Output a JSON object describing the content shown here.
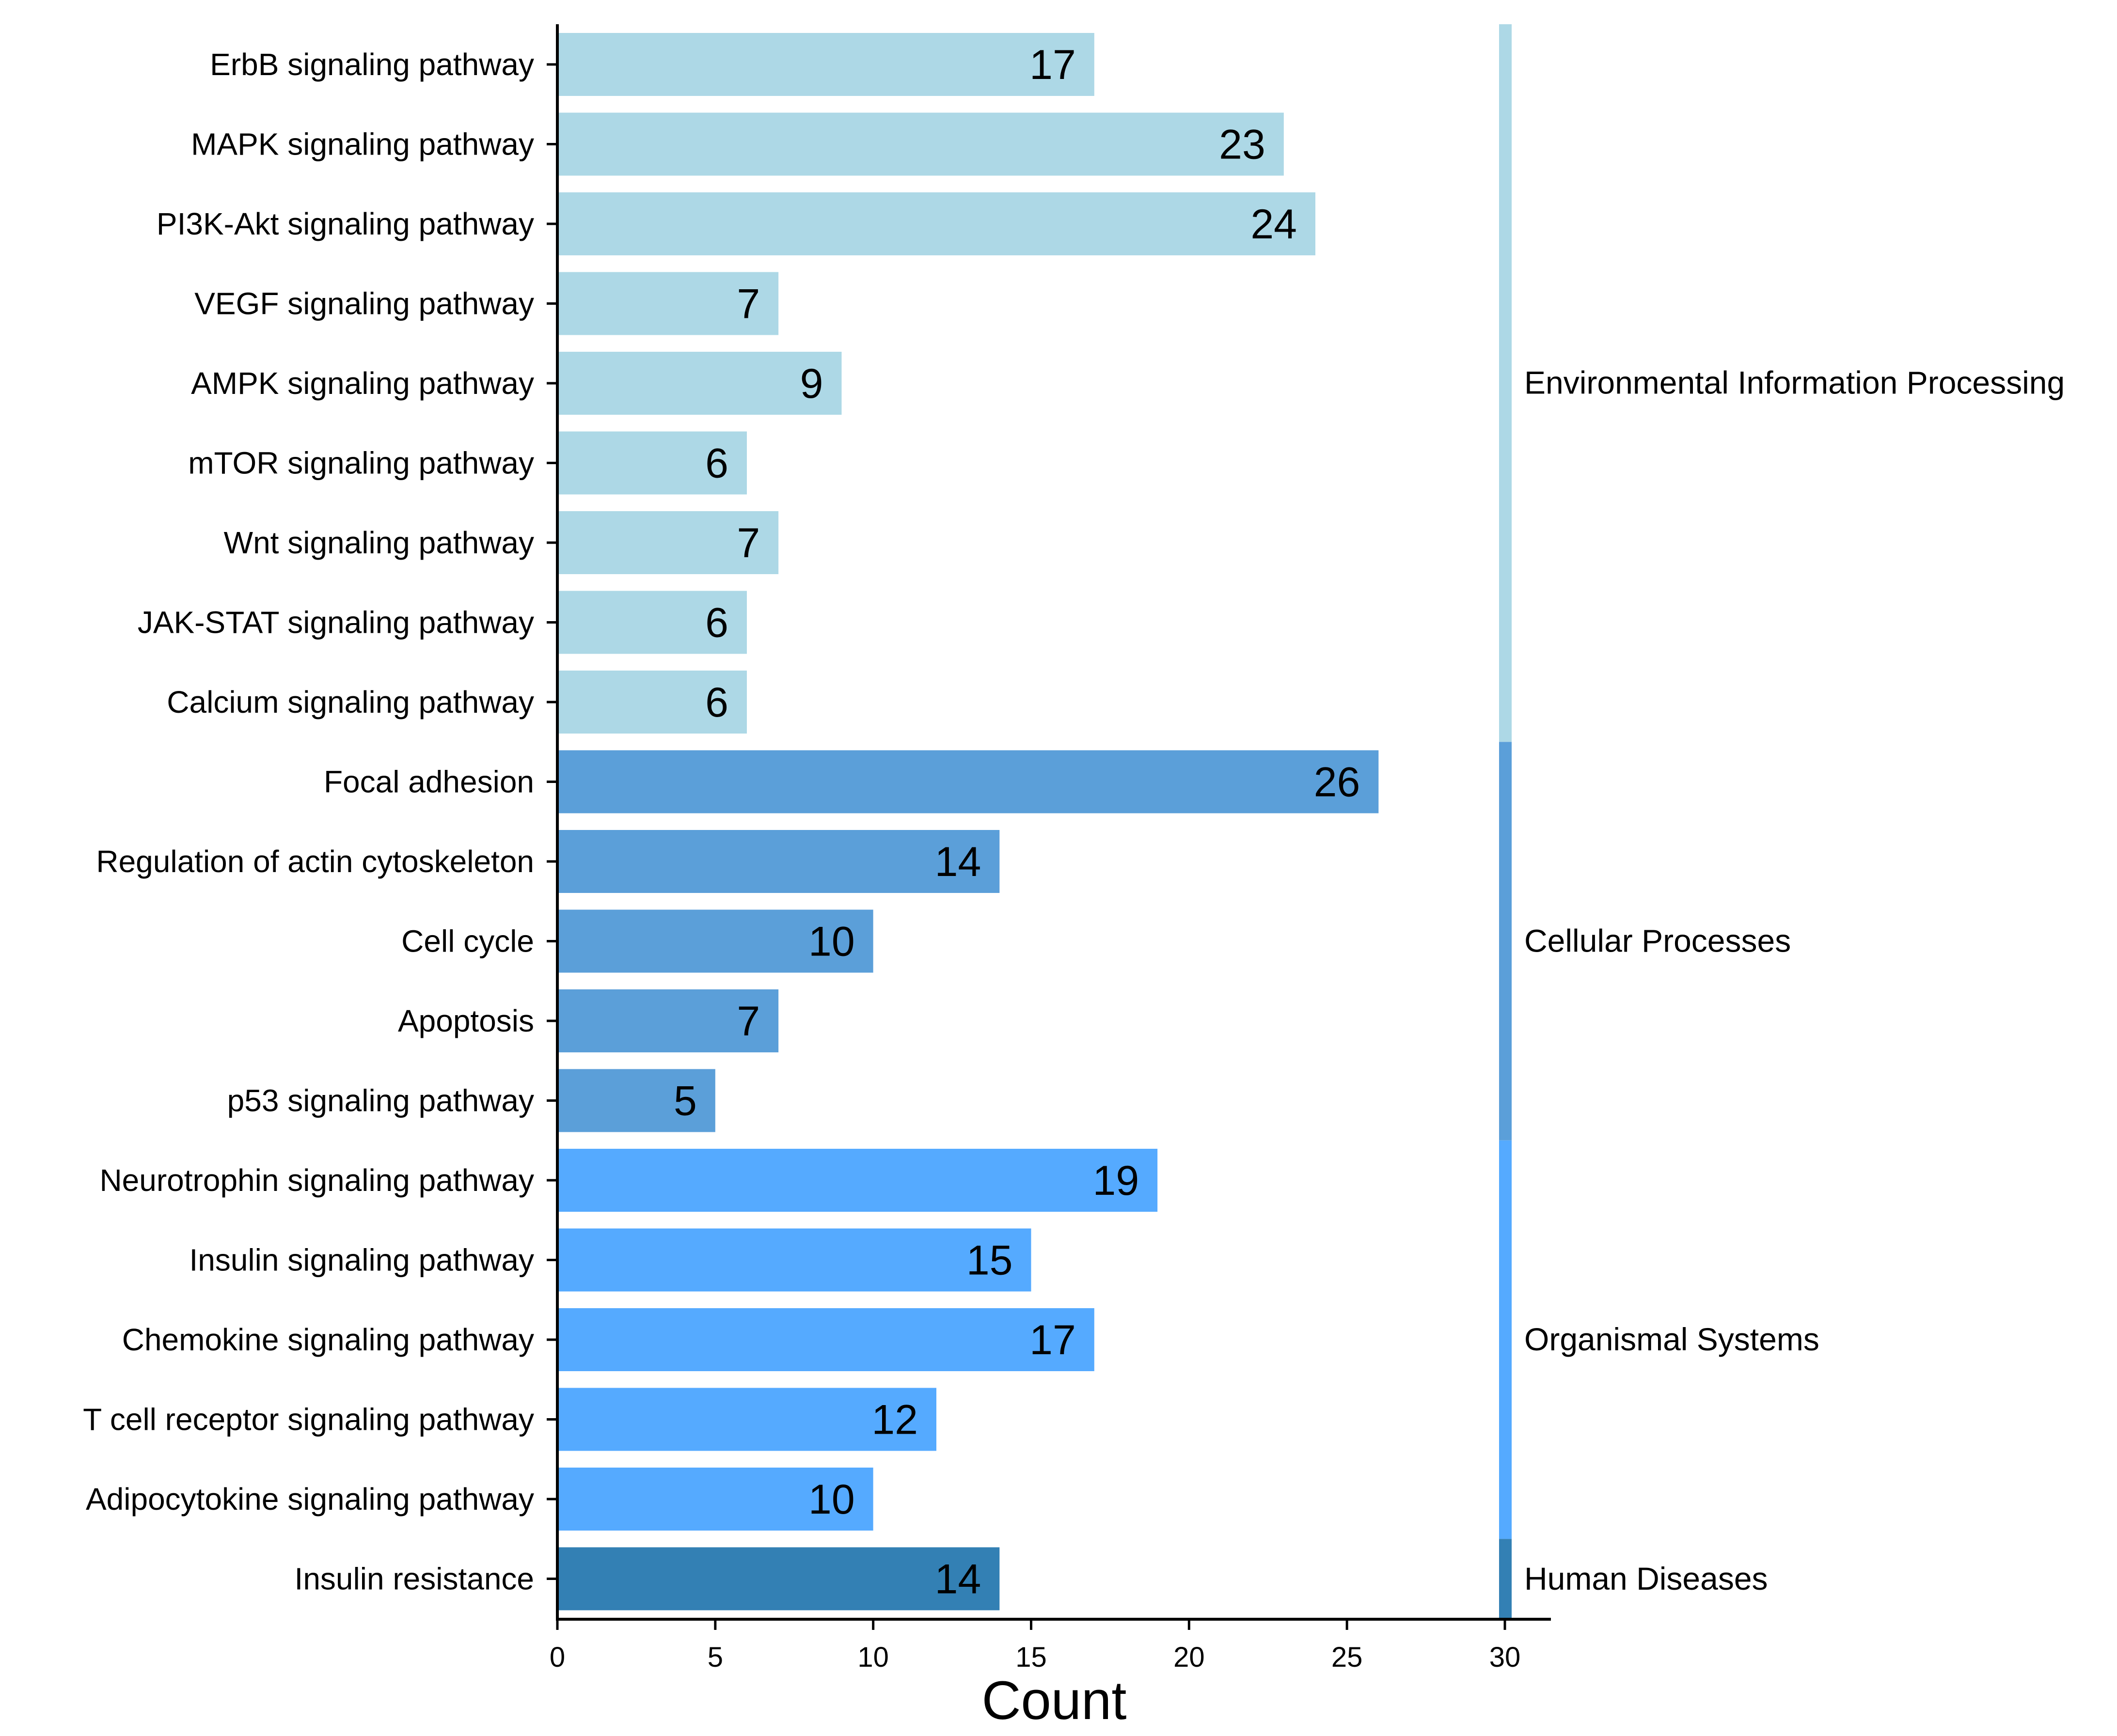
{
  "chart_data": {
    "type": "bar",
    "orientation": "horizontal",
    "xlabel": "Count",
    "ylabel": "",
    "xlim": [
      0,
      30
    ],
    "xticks": [
      "0",
      "5",
      "10",
      "15",
      "20",
      "25",
      "30"
    ],
    "grid": false,
    "data_labels": true,
    "categories": [
      "ErbB signaling pathway",
      "MAPK signaling pathway",
      "PI3K-Akt signaling pathway",
      "VEGF signaling pathway",
      "AMPK signaling pathway",
      "mTOR signaling pathway",
      "Wnt signaling pathway",
      "JAK-STAT signaling pathway",
      "Calcium signaling pathway",
      "Focal adhesion",
      "Regulation of actin cytoskeleton",
      "Cell cycle",
      "Apoptosis",
      "p53 signaling pathway",
      "Neurotrophin signaling pathway",
      "Insulin signaling pathway",
      "Chemokine signaling pathway",
      "T cell receptor signaling pathway",
      "Adipocytokine signaling pathway",
      "Insulin resistance"
    ],
    "values": [
      17,
      23,
      24,
      7,
      9,
      6,
      7,
      6,
      6,
      26,
      14,
      10,
      7,
      5,
      19,
      15,
      17,
      12,
      10,
      14
    ],
    "groups": [
      {
        "name": "Environmental Information Processing",
        "start": 0,
        "end": 8,
        "color": "#add8e6"
      },
      {
        "name": "Cellular Processes",
        "start": 9,
        "end": 13,
        "color": "#5b9fd9"
      },
      {
        "name": "Organismal Systems",
        "start": 14,
        "end": 18,
        "color": "#55aaff"
      },
      {
        "name": "Human Diseases",
        "start": 19,
        "end": 19,
        "color": "#3380b4"
      }
    ]
  }
}
